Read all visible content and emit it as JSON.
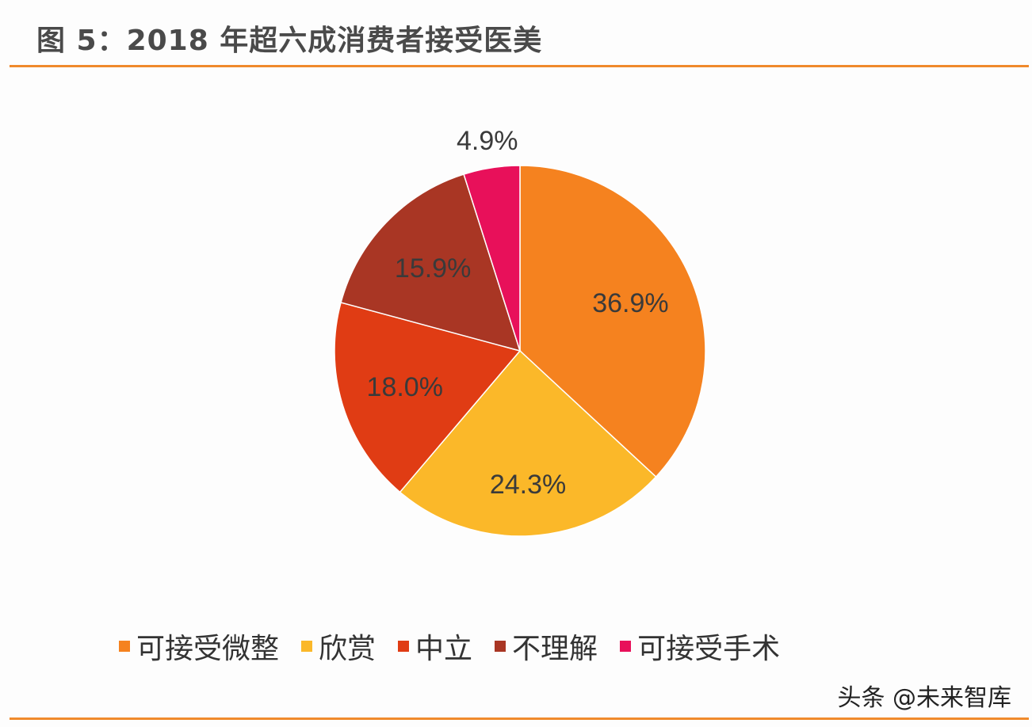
{
  "chart_data": {
    "type": "pie",
    "title": "图 5：2018 年超六成消费者接受医美",
    "slices": [
      {
        "label": "可接受微整",
        "value": 36.9,
        "display": "36.9%",
        "color": "#F5821F"
      },
      {
        "label": "欣赏",
        "value": 24.3,
        "display": "24.3%",
        "color": "#FBB829"
      },
      {
        "label": "中立",
        "value": 18.0,
        "display": "18.0%",
        "color": "#E03C14"
      },
      {
        "label": "不理解",
        "value": 15.9,
        "display": "15.9%",
        "color": "#A93624"
      },
      {
        "label": "可接受手术",
        "value": 4.9,
        "display": "4.9%",
        "color": "#E8105A"
      }
    ],
    "legend_position": "bottom"
  },
  "watermark": "头条 @未来智库"
}
